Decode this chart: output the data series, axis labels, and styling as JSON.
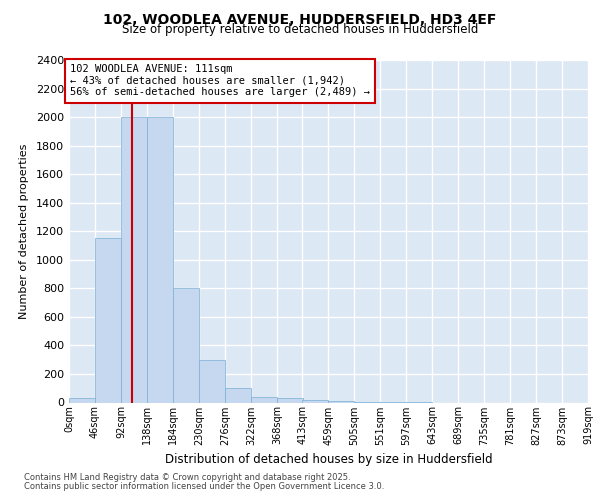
{
  "title1": "102, WOODLEA AVENUE, HUDDERSFIELD, HD3 4EF",
  "title2": "Size of property relative to detached houses in Huddersfield",
  "xlabel": "Distribution of detached houses by size in Huddersfield",
  "ylabel": "Number of detached properties",
  "bar_values": [
    30,
    1150,
    2000,
    2000,
    800,
    300,
    100,
    40,
    30,
    20,
    10,
    5,
    2,
    1,
    0,
    0,
    0,
    0,
    0,
    0
  ],
  "bin_labels": [
    "0sqm",
    "46sqm",
    "92sqm",
    "138sqm",
    "184sqm",
    "230sqm",
    "276sqm",
    "322sqm",
    "368sqm",
    "413sqm",
    "459sqm",
    "505sqm",
    "551sqm",
    "597sqm",
    "643sqm",
    "689sqm",
    "735sqm",
    "781sqm",
    "827sqm",
    "873sqm",
    "919sqm"
  ],
  "bin_edges": [
    0,
    46,
    92,
    138,
    184,
    230,
    276,
    322,
    368,
    413,
    459,
    505,
    551,
    597,
    643,
    689,
    735,
    781,
    827,
    873,
    919
  ],
  "bar_color": "#c5d8f0",
  "bar_edge_color": "#7aafd4",
  "property_size": 111,
  "red_line_color": "#cc0000",
  "annotation_text_line1": "102 WOODLEA AVENUE: 111sqm",
  "annotation_text_line2": "← 43% of detached houses are smaller (1,942)",
  "annotation_text_line3": "56% of semi-detached houses are larger (2,489) →",
  "ylim": [
    0,
    2400
  ],
  "yticks": [
    0,
    200,
    400,
    600,
    800,
    1000,
    1200,
    1400,
    1600,
    1800,
    2000,
    2200,
    2400
  ],
  "fig_bg_color": "#ffffff",
  "plot_bg_color": "#dde8f5",
  "grid_color": "#ffffff",
  "footer1": "Contains HM Land Registry data © Crown copyright and database right 2025.",
  "footer2": "Contains public sector information licensed under the Open Government Licence 3.0."
}
